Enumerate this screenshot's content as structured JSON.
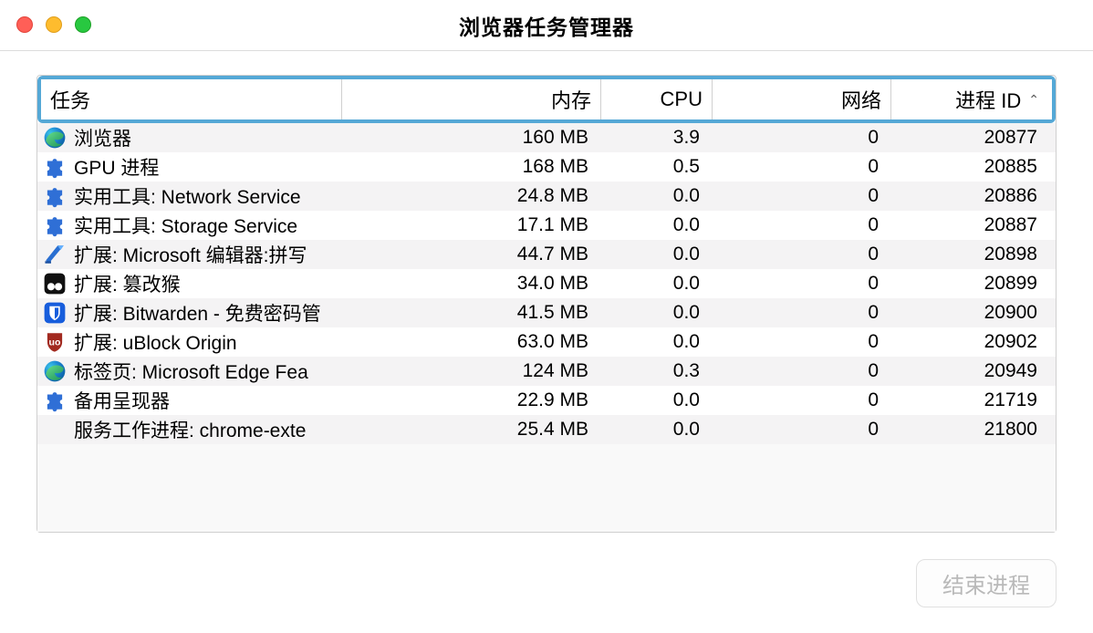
{
  "window": {
    "title": "浏览器任务管理器"
  },
  "colors": {
    "header_highlight": "#55a8d6",
    "traffic_close": "#ff5f57",
    "traffic_min": "#febc2e",
    "traffic_max": "#28c840",
    "row_alt": "#f4f3f4",
    "btn_disabled_text": "#b9b9b9"
  },
  "columns": {
    "task": "任务",
    "memory": "内存",
    "cpu": "CPU",
    "network": "网络",
    "pid": "进程 ID",
    "sorted_by": "pid",
    "sort_dir": "asc"
  },
  "footer": {
    "end_process_label": "结束进程",
    "end_process_enabled": false
  },
  "rows": [
    {
      "icon": "edge",
      "task": "浏览器",
      "memory": "160 MB",
      "cpu": "3.9",
      "network": "0",
      "pid": "20877"
    },
    {
      "icon": "puzzle-blue",
      "task": "GPU 进程",
      "memory": "168 MB",
      "cpu": "0.5",
      "network": "0",
      "pid": "20885"
    },
    {
      "icon": "puzzle-blue",
      "task": "实用工具: Network Service",
      "memory": "24.8 MB",
      "cpu": "0.0",
      "network": "0",
      "pid": "20886"
    },
    {
      "icon": "puzzle-blue",
      "task": "实用工具: Storage Service",
      "memory": "17.1 MB",
      "cpu": "0.0",
      "network": "0",
      "pid": "20887"
    },
    {
      "icon": "editor",
      "task": "扩展: Microsoft 编辑器:拼写",
      "memory": "44.7 MB",
      "cpu": "0.0",
      "network": "0",
      "pid": "20898"
    },
    {
      "icon": "tamper",
      "task": "扩展: 篡改猴",
      "memory": "34.0 MB",
      "cpu": "0.0",
      "network": "0",
      "pid": "20899"
    },
    {
      "icon": "bitwarden",
      "task": "扩展: Bitwarden - 免费密码管",
      "memory": "41.5 MB",
      "cpu": "0.0",
      "network": "0",
      "pid": "20900"
    },
    {
      "icon": "ublock",
      "task": "扩展: uBlock Origin",
      "memory": "63.0 MB",
      "cpu": "0.0",
      "network": "0",
      "pid": "20902"
    },
    {
      "icon": "edge",
      "task": "标签页: Microsoft Edge Fea",
      "memory": "124 MB",
      "cpu": "0.3",
      "network": "0",
      "pid": "20949"
    },
    {
      "icon": "puzzle-blue",
      "task": "备用呈现器",
      "memory": "22.9 MB",
      "cpu": "0.0",
      "network": "0",
      "pid": "21719"
    },
    {
      "icon": "none",
      "task": "服务工作进程: chrome-exte",
      "memory": "25.4 MB",
      "cpu": "0.0",
      "network": "0",
      "pid": "21800"
    }
  ]
}
